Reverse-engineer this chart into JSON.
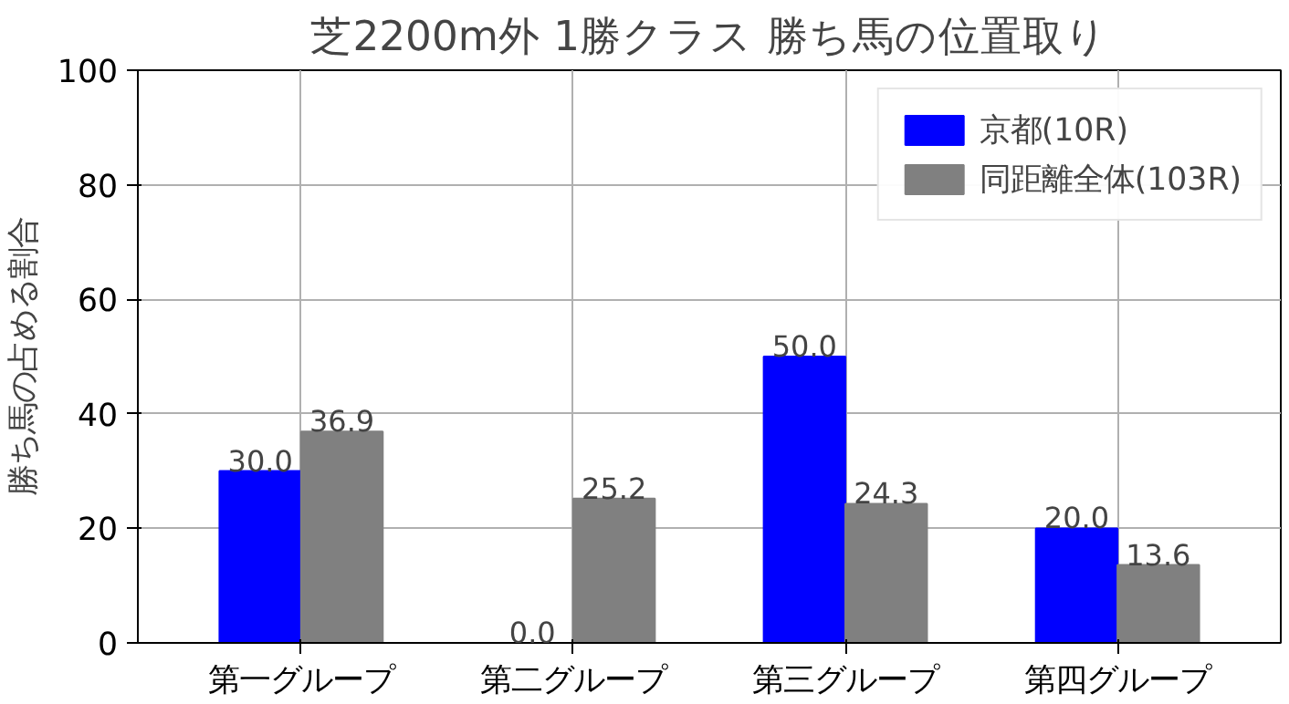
{
  "chart_data": {
    "type": "bar",
    "title": "芝2200m外 1勝クラス 勝ち馬の位置取り",
    "ylabel": "勝ち馬の占める割合",
    "categories": [
      "第一グループ",
      "第二グループ",
      "第三グループ",
      "第四グループ"
    ],
    "series": [
      {
        "name": "京都(10R)",
        "color": "#0000ff",
        "values": [
          30.0,
          0.0,
          50.0,
          20.0
        ],
        "value_labels": [
          "30.0",
          "0.0",
          "50.0",
          "20.0"
        ]
      },
      {
        "name": "同距離全体(103R)",
        "color": "#808080",
        "values": [
          36.9,
          25.2,
          24.3,
          13.6
        ],
        "value_labels": [
          "36.9",
          "25.2",
          "24.3",
          "13.6"
        ]
      }
    ],
    "ylim": [
      0,
      100
    ],
    "yticks": [
      0,
      20,
      40,
      60,
      80,
      100
    ],
    "grid": true,
    "legend": "top right"
  }
}
